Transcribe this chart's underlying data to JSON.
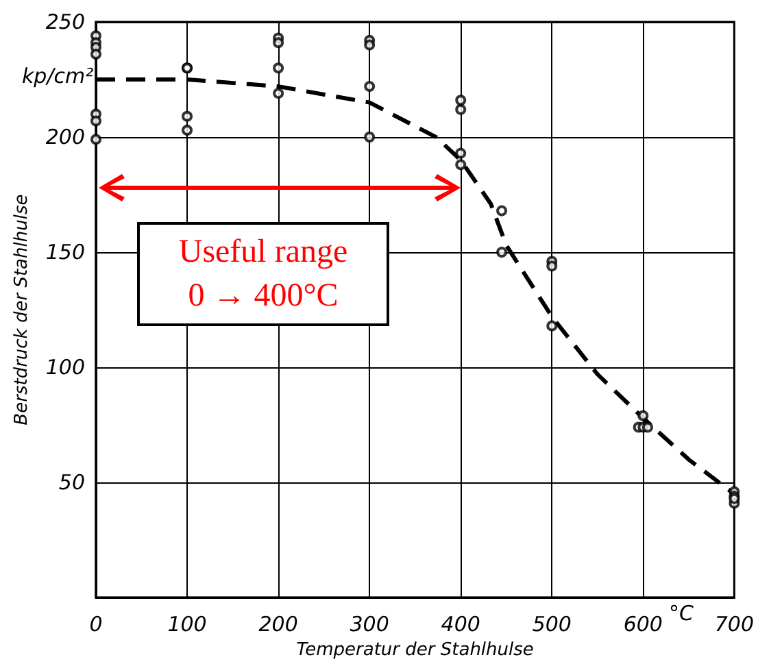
{
  "chart_data": {
    "type": "scatter",
    "xlabel": "Temperatur der Stahlhulse",
    "ylabel": "Berstdruck der Stahlhulse",
    "xlim": [
      0,
      700
    ],
    "xticks": [
      0,
      100,
      200,
      300,
      400,
      500,
      600,
      700
    ],
    "ylim": [
      0,
      250
    ],
    "yticks": [
      {
        "value": 0,
        "label": null
      },
      50,
      100,
      150,
      200,
      250
    ],
    "grid": true,
    "marker": "circle",
    "series": [
      {
        "color": "#000000",
        "x": [
          0,
          0,
          0,
          0,
          0,
          0,
          0,
          100,
          100,
          100,
          100,
          200,
          200,
          200,
          200,
          300,
          300,
          300,
          300,
          400,
          400,
          400,
          400,
          445,
          445,
          500,
          500,
          500,
          595,
          600,
          605,
          600,
          700,
          700,
          700,
          700
        ],
        "values": [
          244,
          241,
          239,
          236,
          210,
          207,
          199,
          230,
          230,
          209,
          203,
          243,
          241,
          230,
          219,
          242,
          240,
          222,
          200,
          216,
          212,
          193,
          188,
          168,
          150,
          146,
          144,
          118,
          74,
          74,
          74,
          79,
          46,
          44,
          41,
          43
        ]
      },
      {
        "type": "line",
        "color": "#000000",
        "line_style": "dashed",
        "marker": "none",
        "x": [
          0,
          100,
          200,
          300,
          373,
          400,
          433,
          450,
          500,
          550,
          600,
          650,
          700
        ],
        "values": [
          225,
          225,
          222,
          215,
          200,
          190,
          171,
          153,
          122,
          97,
          78,
          60,
          45
        ]
      }
    ],
    "annotations": [
      "kp/cm²",
      "°C",
      "Useful range\n0 → 400°C"
    ]
  }
}
